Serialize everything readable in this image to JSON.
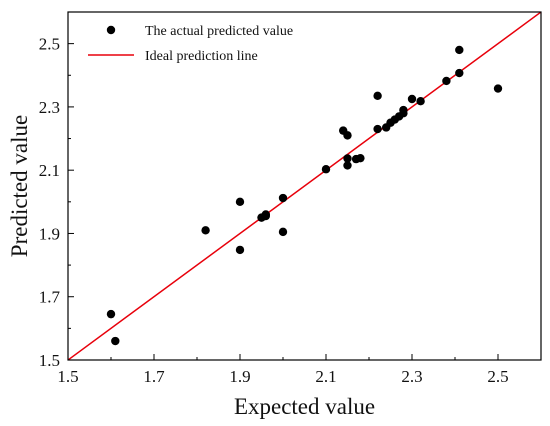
{
  "chart_data": {
    "type": "scatter",
    "xlabel": "Expected value",
    "ylabel": "Predicted value",
    "xlim": [
      1.5,
      2.6
    ],
    "ylim": [
      1.5,
      2.6
    ],
    "xticks": [
      "1.5",
      "1.7",
      "1.9",
      "2.1",
      "2.3",
      "2.5"
    ],
    "yticks": [
      "1.5",
      "1.7",
      "1.9",
      "2.1",
      "2.3",
      "2.5"
    ],
    "legend_position": "top-left",
    "series": [
      {
        "name": "The actual predicted value",
        "marker": "circle",
        "color": "#000000",
        "points": [
          [
            1.6,
            1.645
          ],
          [
            1.61,
            1.56
          ],
          [
            1.82,
            1.91
          ],
          [
            1.9,
            2.0
          ],
          [
            1.9,
            1.848
          ],
          [
            1.95,
            1.95
          ],
          [
            1.96,
            1.96
          ],
          [
            1.96,
            1.955
          ],
          [
            2.0,
            2.012
          ],
          [
            2.0,
            1.905
          ],
          [
            2.1,
            2.103
          ],
          [
            2.14,
            2.225
          ],
          [
            2.15,
            2.21
          ],
          [
            2.15,
            2.137
          ],
          [
            2.15,
            2.115
          ],
          [
            2.17,
            2.135
          ],
          [
            2.18,
            2.138
          ],
          [
            2.22,
            2.335
          ],
          [
            2.22,
            2.23
          ],
          [
            2.24,
            2.235
          ],
          [
            2.25,
            2.25
          ],
          [
            2.26,
            2.26
          ],
          [
            2.27,
            2.27
          ],
          [
            2.28,
            2.28
          ],
          [
            2.28,
            2.29
          ],
          [
            2.3,
            2.325
          ],
          [
            2.32,
            2.318
          ],
          [
            2.38,
            2.382
          ],
          [
            2.41,
            2.48
          ],
          [
            2.41,
            2.407
          ],
          [
            2.5,
            2.358
          ]
        ]
      },
      {
        "name": "Ideal prediction line",
        "type": "line",
        "color": "#e8000b",
        "points": [
          [
            1.5,
            1.5
          ],
          [
            2.6,
            2.6
          ]
        ]
      }
    ]
  }
}
